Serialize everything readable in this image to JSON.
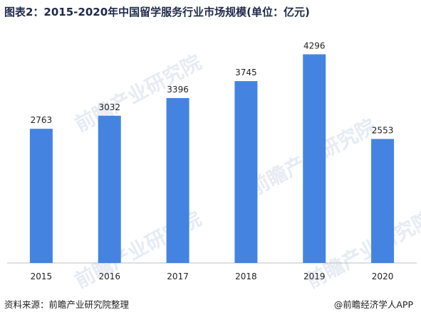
{
  "title": "图表2：2015-2020年中国留学服务行业市场规模(单位：亿元)",
  "watermark_text": "前瞻产业研究院",
  "footer": {
    "source": "资料来源：前瞻产业研究院整理",
    "brand": "@前瞻经济学人APP"
  },
  "colors": {
    "bar": "#4484e0",
    "axis": "#bfbfbf",
    "title": "#1f2a4a"
  },
  "chart_data": {
    "type": "bar",
    "categories": [
      "2015",
      "2016",
      "2017",
      "2018",
      "2019",
      "2020"
    ],
    "values": [
      2763,
      3032,
      3396,
      3745,
      4296,
      2553
    ],
    "title": "图表2：2015-2020年中国留学服务行业市场规模(单位：亿元)",
    "xlabel": "",
    "ylabel": "",
    "ylim": [
      0,
      4800
    ],
    "grid": false,
    "legend": "none",
    "data_labels": true
  }
}
